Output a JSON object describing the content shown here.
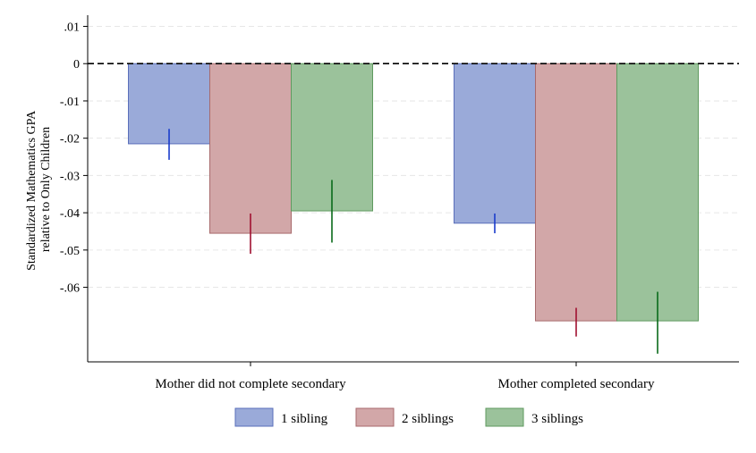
{
  "chart_data": {
    "type": "bar",
    "title": "",
    "ylabel_lines": [
      "Standardized Mathematics GPA",
      "relative to Only Children"
    ],
    "xlabel": "",
    "categories": [
      "Mother did not complete secondary",
      "Mother completed secondary"
    ],
    "yticks": [
      {
        "value": 0.01,
        "label": ".01"
      },
      {
        "value": 0,
        "label": "0"
      },
      {
        "value": -0.01,
        "label": "-.01"
      },
      {
        "value": -0.02,
        "label": "-.02"
      },
      {
        "value": -0.03,
        "label": "-.03"
      },
      {
        "value": -0.04,
        "label": "-.04"
      },
      {
        "value": -0.05,
        "label": "-.05"
      },
      {
        "value": -0.06,
        "label": "-.06"
      }
    ],
    "ylim": [
      -0.08,
      0.013
    ],
    "zero_line": "dashed",
    "grid": true,
    "legend_position": "bottom",
    "series": [
      {
        "name": "1 sibling",
        "fill": "#9aaad9",
        "stroke": "#5a6fba",
        "ci_color": "#1a3ccc",
        "values": [
          -0.0215,
          -0.0428
        ],
        "ci_low": [
          -0.0258,
          -0.0455
        ],
        "ci_high": [
          -0.0175,
          -0.0402
        ]
      },
      {
        "name": "2 siblings",
        "fill": "#d2a7a8",
        "stroke": "#a86a6c",
        "ci_color": "#a01030",
        "values": [
          -0.0455,
          -0.069
        ],
        "ci_low": [
          -0.051,
          -0.0732
        ],
        "ci_high": [
          -0.0402,
          -0.0655
        ]
      },
      {
        "name": "3 siblings",
        "fill": "#9bc29b",
        "stroke": "#5f9a5f",
        "ci_color": "#0a6a1a",
        "values": [
          -0.0395,
          -0.069
        ],
        "ci_low": [
          -0.048,
          -0.0778
        ],
        "ci_high": [
          -0.0312,
          -0.0612
        ]
      }
    ]
  }
}
